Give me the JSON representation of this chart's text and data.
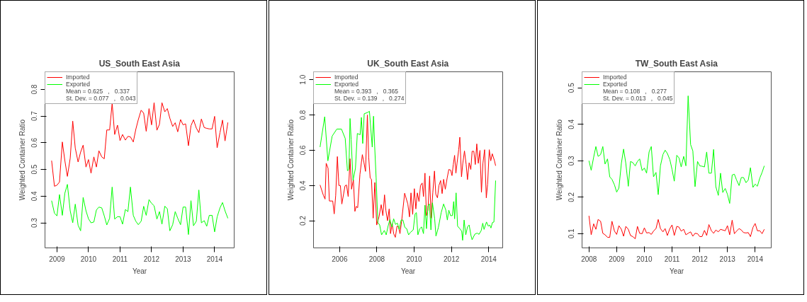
{
  "chart_data": [
    {
      "type": "line",
      "title": "US_South East Asia",
      "xlabel": "Year",
      "ylabel": "Weighted Container Ratio",
      "x": [
        2008.83,
        2008.92,
        2009.0,
        2009.08,
        2009.17,
        2009.25,
        2009.33,
        2009.42,
        2009.5,
        2009.58,
        2009.67,
        2009.75,
        2009.83,
        2009.92,
        2010.0,
        2010.08,
        2010.17,
        2010.25,
        2010.33,
        2010.42,
        2010.5,
        2010.58,
        2010.67,
        2010.75,
        2010.83,
        2010.92,
        2011.0,
        2011.08,
        2011.17,
        2011.25,
        2011.33,
        2011.42,
        2011.5,
        2011.58,
        2011.67,
        2011.75,
        2011.83,
        2011.92,
        2012.0,
        2012.08,
        2012.17,
        2012.25,
        2012.33,
        2012.42,
        2012.5,
        2012.58,
        2012.67,
        2012.75,
        2012.83,
        2012.92,
        2013.0,
        2013.08,
        2013.17,
        2013.25,
        2013.33,
        2013.42,
        2013.5,
        2013.58,
        2013.67,
        2013.75,
        2013.83,
        2013.92,
        2014.0,
        2014.08,
        2014.17,
        2014.25,
        2014.33,
        2014.42
      ],
      "series": [
        {
          "name": "Imported",
          "color": "#ff0000",
          "values": [
            0.533,
            0.437,
            0.441,
            0.453,
            0.603,
            0.533,
            0.474,
            0.542,
            0.681,
            0.58,
            0.528,
            0.565,
            0.591,
            0.509,
            0.537,
            0.486,
            0.547,
            0.509,
            0.57,
            0.547,
            0.54,
            0.648,
            0.648,
            0.748,
            0.631,
            0.666,
            0.608,
            0.631,
            0.61,
            0.624,
            0.622,
            0.603,
            0.65,
            0.687,
            0.722,
            0.711,
            0.643,
            0.728,
            0.667,
            0.75,
            0.647,
            0.669,
            0.75,
            0.716,
            0.728,
            0.692,
            0.661,
            0.675,
            0.641,
            0.687,
            0.667,
            0.671,
            0.589,
            0.664,
            0.686,
            0.655,
            0.638,
            0.689,
            0.657,
            0.654,
            0.652,
            0.652,
            0.699,
            0.581,
            0.638,
            0.685,
            0.607,
            0.676
          ]
        },
        {
          "name": "Exported",
          "color": "#00ff00",
          "values": [
            0.383,
            0.336,
            0.326,
            0.406,
            0.328,
            0.411,
            0.444,
            0.345,
            0.3,
            0.37,
            0.291,
            0.27,
            0.395,
            0.345,
            0.315,
            0.3,
            0.303,
            0.348,
            0.359,
            0.356,
            0.326,
            0.292,
            0.317,
            0.434,
            0.314,
            0.323,
            0.323,
            0.295,
            0.35,
            0.342,
            0.434,
            0.328,
            0.306,
            0.293,
            0.306,
            0.362,
            0.328,
            0.387,
            0.373,
            0.364,
            0.314,
            0.342,
            0.295,
            0.362,
            0.353,
            0.27,
            0.293,
            0.342,
            0.317,
            0.293,
            0.359,
            0.359,
            0.256,
            0.383,
            0.289,
            0.306,
            0.423,
            0.3,
            0.308,
            0.287,
            0.328,
            0.328,
            0.266,
            0.322,
            0.356,
            0.376,
            0.345,
            0.317
          ]
        }
      ],
      "annotations": [
        "Mean = 0.625   ,   0.337",
        "St. Dev. = 0.077   ,   0.043"
      ],
      "xlim": [
        2008.62,
        2014.62
      ],
      "ylim": [
        0.206,
        0.866
      ],
      "xticks": [
        2009,
        2010,
        2011,
        2012,
        2013,
        2014
      ],
      "yticks": [
        0.3,
        0.4,
        0.5,
        0.6,
        0.7,
        0.8
      ],
      "legend": "top left",
      "grid": false,
      "marker": "none",
      "line_style": "solid"
    },
    {
      "type": "line",
      "title": "UK_South East Asia",
      "xlabel": "Year",
      "ylabel": "Weighted Container Ratio",
      "series": [
        {
          "name": "Imported",
          "color": "#ff0000",
          "x": [
            2004.95,
            2005.13,
            2005.22,
            2005.28,
            2005.38,
            2005.45,
            2005.63,
            2005.71,
            2005.79,
            2005.88,
            2005.96,
            2006.04,
            2006.12,
            2006.29,
            2006.37,
            2006.46,
            2006.56,
            2006.64,
            2006.74,
            2006.82,
            2006.89,
            2006.97,
            2007.09,
            2007.22,
            2007.3,
            2007.39,
            2007.49,
            2007.56,
            2007.64,
            2007.71,
            2007.8,
            2007.89,
            2007.99,
            2008.11,
            2008.23,
            2008.32,
            2008.41,
            2008.48,
            2008.57,
            2008.66,
            2008.73,
            2008.82,
            2008.9,
            2008.99,
            2009.08,
            2009.16,
            2009.24,
            2009.33,
            2009.49,
            2009.66,
            2009.75,
            2009.83,
            2009.92,
            2010.01,
            2010.09,
            2010.17,
            2010.26,
            2010.34,
            2010.43,
            2010.5,
            2010.58,
            2010.66,
            2010.74,
            2010.83,
            2010.91,
            2011.0,
            2011.09,
            2011.16,
            2011.25,
            2011.33,
            2011.42,
            2011.5,
            2011.58,
            2011.67,
            2011.77,
            2011.86,
            2011.96,
            2012.03,
            2012.1,
            2012.17,
            2012.24,
            2012.3,
            2012.39,
            2012.45,
            2012.54,
            2012.61,
            2012.7,
            2012.79,
            2012.86,
            2012.95,
            2013.04,
            2013.11,
            2013.2,
            2013.28,
            2013.36,
            2013.44,
            2013.53,
            2013.61,
            2013.69,
            2013.78,
            2013.87,
            2013.94,
            2014.03,
            2014.11,
            2014.19,
            2014.31,
            2014.37
          ],
          "values": [
            0.403,
            0.344,
            0.323,
            0.526,
            0.498,
            0.312,
            0.312,
            0.239,
            0.344,
            0.564,
            0.4,
            0.4,
            0.295,
            0.398,
            0.403,
            0.337,
            0.552,
            0.379,
            0.433,
            0.253,
            0.281,
            0.274,
            0.463,
            0.575,
            0.533,
            0.48,
            0.8,
            0.561,
            0.442,
            0.435,
            0.215,
            0.417,
            0.176,
            0.221,
            0.291,
            0.229,
            0.347,
            0.26,
            0.2,
            0.267,
            0.127,
            0.183,
            0.127,
            0.106,
            0.169,
            0.166,
            0.127,
            0.2,
            0.356,
            0.295,
            0.222,
            0.358,
            0.236,
            0.382,
            0.267,
            0.358,
            0.309,
            0.4,
            0.414,
            0.337,
            0.47,
            0.229,
            0.26,
            0.454,
            0.215,
            0.358,
            0.482,
            0.351,
            0.33,
            0.4,
            0.428,
            0.354,
            0.435,
            0.379,
            0.442,
            0.491,
            0.487,
            0.456,
            0.519,
            0.571,
            0.47,
            0.526,
            0.603,
            0.674,
            0.449,
            0.526,
            0.596,
            0.519,
            0.433,
            0.529,
            0.491,
            0.594,
            0.594,
            0.519,
            0.636,
            0.526,
            0.599,
            0.361,
            0.526,
            0.603,
            0.33,
            0.407,
            0.603,
            0.54,
            0.58,
            0.54,
            0.512
          ]
        },
        {
          "name": "Exported",
          "color": "#00ff00",
          "x": [
            2004.95,
            2005.2,
            2005.37,
            2005.6,
            2005.85,
            2006.1,
            2006.3,
            2006.42,
            2006.5,
            2006.56,
            2006.62,
            2006.72,
            2006.85,
            2006.95,
            2007.1,
            2007.17,
            2007.24,
            2007.32,
            2007.5,
            2007.6,
            2007.75,
            2007.82,
            2007.88,
            2007.96,
            2008.05,
            2008.15,
            2008.25,
            2008.4,
            2008.5,
            2008.6,
            2008.7,
            2008.8,
            2008.9,
            2009.0,
            2009.1,
            2009.2,
            2009.3,
            2009.4,
            2009.5,
            2009.6,
            2009.7,
            2009.8,
            2009.95,
            2010.05,
            2010.12,
            2010.2,
            2010.3,
            2010.4,
            2010.5,
            2010.58,
            2010.66,
            2010.74,
            2010.82,
            2010.9,
            2010.98,
            2011.1,
            2011.17,
            2011.3,
            2011.45,
            2011.58,
            2011.7,
            2011.78,
            2011.86,
            2011.95,
            2012.05,
            2012.12,
            2012.17,
            2012.25,
            2012.33,
            2012.45,
            2012.55,
            2012.6,
            2012.68,
            2012.77,
            2012.86,
            2012.95,
            2013.05,
            2013.11,
            2013.25,
            2013.38,
            2013.48,
            2013.6,
            2013.68,
            2013.75,
            2013.88,
            2013.98,
            2014.05,
            2014.12,
            2014.2,
            2014.28,
            2014.37
          ],
          "values": [
            0.618,
            0.79,
            0.54,
            0.68,
            0.72,
            0.72,
            0.667,
            0.484,
            0.491,
            0.78,
            0.66,
            0.428,
            0.498,
            0.695,
            0.688,
            0.786,
            0.638,
            0.807,
            0.814,
            0.821,
            0.618,
            0.793,
            0.625,
            0.442,
            0.19,
            0.176,
            0.12,
            0.145,
            0.12,
            0.169,
            0.207,
            0.165,
            0.211,
            0.179,
            0.187,
            0.151,
            0.204,
            0.204,
            0.162,
            0.155,
            0.12,
            0.134,
            0.148,
            0.239,
            0.246,
            0.12,
            0.155,
            0.165,
            0.127,
            0.288,
            0.155,
            0.284,
            0.295,
            0.148,
            0.302,
            0.211,
            0.113,
            0.162,
            0.246,
            0.295,
            0.26,
            0.204,
            0.26,
            0.229,
            0.229,
            0.309,
            0.211,
            0.358,
            0.169,
            0.155,
            0.141,
            0.089,
            0.204,
            0.12,
            0.165,
            0.176,
            0.116,
            0.092,
            0.123,
            0.13,
            0.123,
            0.145,
            0.186,
            0.151,
            0.193,
            0.169,
            0.176,
            0.159,
            0.19,
            0.193,
            0.428
          ]
        }
      ],
      "annotations": [
        "Mean = 0.393   ,   0.365",
        "St. Dev. = 0.139   ,   0.274"
      ],
      "xlim": [
        2004.6,
        2014.75
      ],
      "ylim": [
        0.046,
        1.045
      ],
      "xticks": [
        2006,
        2008,
        2010,
        2012,
        2014
      ],
      "yticks": [
        0.2,
        0.4,
        0.6,
        0.8,
        {
          "value": 1.0,
          "label": "1.0"
        }
      ],
      "legend": "top left",
      "grid": false,
      "marker": "none",
      "line_style": "solid"
    },
    {
      "type": "line",
      "title": "TW_South East Asia",
      "xlabel": "Year",
      "ylabel": "Weighted Container Ratio",
      "x": [
        2008.0,
        2008.08,
        2008.17,
        2008.25,
        2008.33,
        2008.42,
        2008.5,
        2008.58,
        2008.67,
        2008.75,
        2008.83,
        2008.92,
        2009.0,
        2009.08,
        2009.17,
        2009.25,
        2009.33,
        2009.42,
        2009.5,
        2009.58,
        2009.67,
        2009.75,
        2009.83,
        2009.92,
        2010.0,
        2010.08,
        2010.17,
        2010.25,
        2010.33,
        2010.42,
        2010.5,
        2010.58,
        2010.67,
        2010.75,
        2010.83,
        2010.92,
        2011.0,
        2011.08,
        2011.17,
        2011.25,
        2011.33,
        2011.42,
        2011.5,
        2011.58,
        2011.67,
        2011.75,
        2011.83,
        2011.92,
        2012.0,
        2012.08,
        2012.17,
        2012.25,
        2012.33,
        2012.42,
        2012.5,
        2012.58,
        2012.67,
        2012.75,
        2012.83,
        2012.92,
        2013.0,
        2013.08,
        2013.17,
        2013.25,
        2013.33,
        2013.42,
        2013.5,
        2013.58,
        2013.67,
        2013.75,
        2013.83,
        2013.92,
        2014.0,
        2014.08,
        2014.17,
        2014.25,
        2014.33
      ],
      "series": [
        {
          "name": "Imported",
          "color": "#ff0000",
          "values": [
            0.149,
            0.097,
            0.127,
            0.112,
            0.139,
            0.134,
            0.101,
            0.097,
            0.09,
            0.09,
            0.134,
            0.107,
            0.098,
            0.122,
            0.112,
            0.093,
            0.12,
            0.112,
            0.095,
            0.092,
            0.086,
            0.12,
            0.101,
            0.1,
            0.116,
            0.102,
            0.103,
            0.098,
            0.107,
            0.114,
            0.139,
            0.114,
            0.105,
            0.114,
            0.095,
            0.114,
            0.124,
            0.095,
            0.12,
            0.118,
            0.107,
            0.112,
            0.097,
            0.101,
            0.105,
            0.093,
            0.101,
            0.1,
            0.092,
            0.092,
            0.109,
            0.095,
            0.125,
            0.108,
            0.101,
            0.11,
            0.105,
            0.112,
            0.11,
            0.108,
            0.122,
            0.097,
            0.137,
            0.1,
            0.107,
            0.114,
            0.11,
            0.103,
            0.102,
            0.103,
            0.092,
            0.117,
            0.128,
            0.108,
            0.108,
            0.1,
            0.112
          ]
        },
        {
          "name": "Exported",
          "color": "#00ff00",
          "values": [
            0.3,
            0.274,
            0.31,
            0.339,
            0.312,
            0.317,
            0.339,
            0.291,
            0.305,
            0.256,
            0.249,
            0.234,
            0.214,
            0.225,
            0.293,
            0.332,
            0.293,
            0.23,
            0.298,
            0.295,
            0.286,
            0.298,
            0.305,
            0.273,
            0.28,
            0.266,
            0.324,
            0.339,
            0.256,
            0.268,
            0.207,
            0.286,
            0.317,
            0.329,
            0.32,
            0.303,
            0.276,
            0.244,
            0.315,
            0.308,
            0.283,
            0.312,
            0.286,
            0.478,
            0.344,
            0.327,
            0.229,
            0.298,
            0.286,
            0.285,
            0.283,
            0.324,
            0.266,
            0.266,
            0.331,
            0.229,
            0.205,
            0.266,
            0.213,
            0.224,
            0.208,
            0.183,
            0.261,
            0.263,
            0.247,
            0.232,
            0.254,
            0.254,
            0.24,
            0.247,
            0.281,
            0.227,
            0.236,
            0.23,
            0.253,
            0.268,
            0.286
          ]
        }
      ],
      "annotations": [
        "Mean = 0.108   ,   0.277",
        "St. Dev. = 0.013   ,   0.045"
      ],
      "xlim": [
        2007.75,
        2014.58
      ],
      "ylim": [
        0.061,
        0.544
      ],
      "xticks": [
        2008,
        2009,
        2010,
        2011,
        2012,
        2013,
        2014
      ],
      "yticks": [
        0.1,
        0.2,
        0.3,
        0.4,
        0.5
      ],
      "legend": "top left",
      "grid": false,
      "marker": "none",
      "line_style": "solid"
    }
  ]
}
